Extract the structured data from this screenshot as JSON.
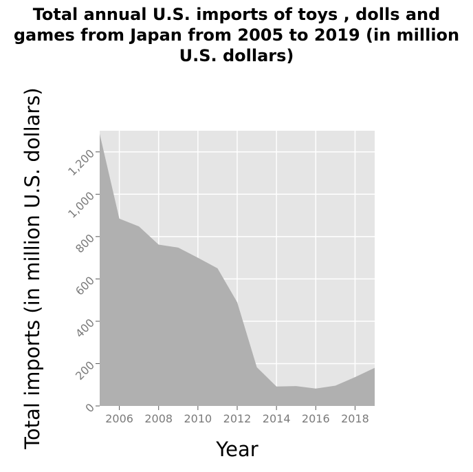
{
  "chart_data": {
    "type": "area",
    "title": "Total annual U.S. imports of toys , dolls and games from Japan from 2005 to 2019 (in million U.S. dollars)",
    "xlabel": "Year",
    "ylabel": "Total imports (in million U.S. dollars)",
    "x": [
      2005,
      2006,
      2007,
      2008,
      2009,
      2010,
      2011,
      2012,
      2013,
      2014,
      2015,
      2016,
      2017,
      2018,
      2019
    ],
    "values": [
      1285,
      885,
      848,
      762,
      748,
      700,
      650,
      490,
      183,
      92,
      94,
      82,
      96,
      136,
      180
    ],
    "xlim": [
      2005,
      2019
    ],
    "ylim": [
      0,
      1300
    ],
    "xticks": [
      2006,
      2008,
      2010,
      2012,
      2014,
      2016,
      2018
    ],
    "xtick_labels": [
      "2006",
      "2008",
      "2010",
      "2012",
      "2014",
      "2016",
      "2018"
    ],
    "yticks": [
      0,
      200,
      400,
      600,
      800,
      1000,
      1200
    ],
    "ytick_labels": [
      "0",
      "200",
      "400",
      "600",
      "800",
      "1,000",
      "1,200"
    ],
    "grid": true,
    "colors": {
      "area": "#b0b0b0",
      "plot_background": "#e5e5e5",
      "grid": "#ffffff"
    }
  }
}
